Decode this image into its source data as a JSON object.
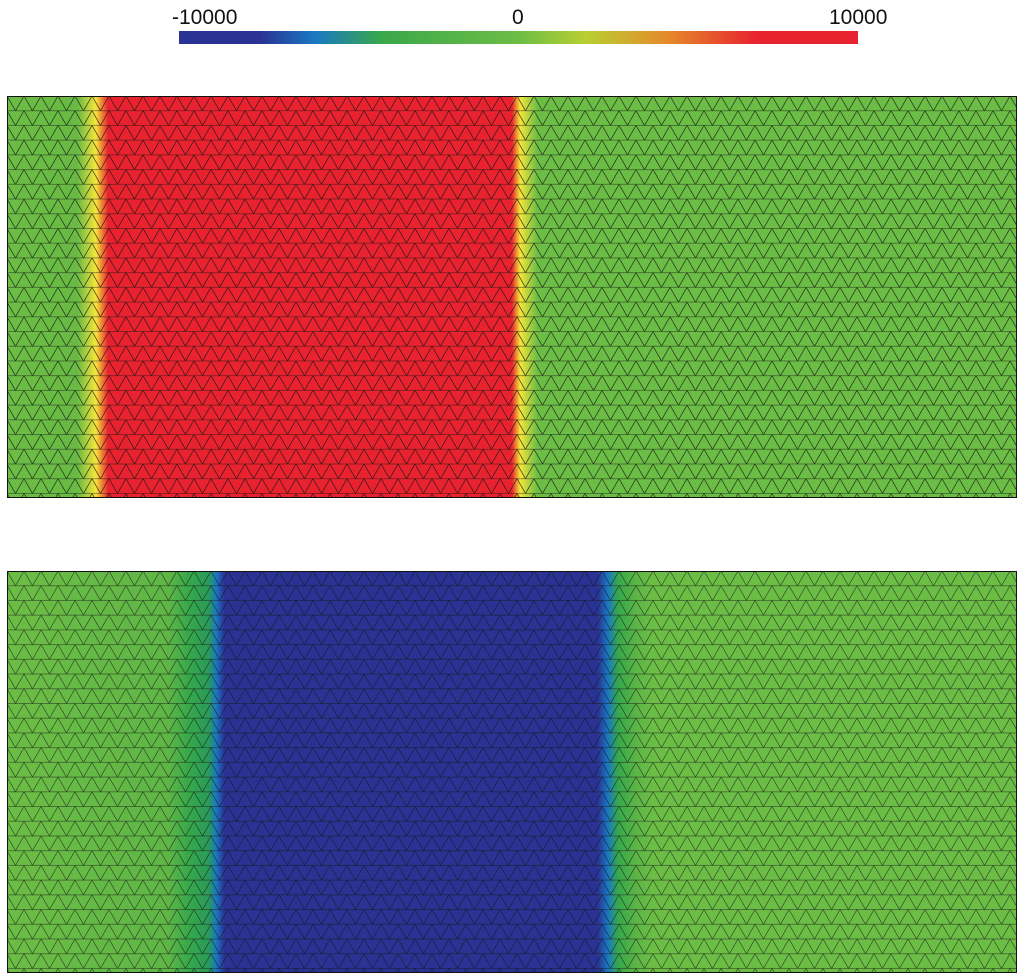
{
  "colorbar": {
    "min_label": "-10000",
    "mid_label": "0",
    "max_label": "10000",
    "colormap": [
      "#2a3393",
      "#1a78c2",
      "#3aa84a",
      "#6cbd45",
      "#b9cf33",
      "#e58a2a",
      "#e8232f"
    ]
  },
  "panels": [
    {
      "name": "top",
      "background_color": "#6cbd45",
      "band": {
        "value": 10000,
        "color": "#e8232f",
        "from": 0.1,
        "to": 0.5
      },
      "transition_color": "#f5e63a"
    },
    {
      "name": "bottom",
      "background_color": "#6cbd45",
      "band": {
        "value": -10000,
        "color": "#2a3393",
        "from": 0.21,
        "to": 0.59
      },
      "transition_color": "#1a78c2",
      "outer_transition_color": "#36a84a"
    }
  ],
  "mesh": {
    "type": "triangular",
    "line_color": "#111111"
  }
}
